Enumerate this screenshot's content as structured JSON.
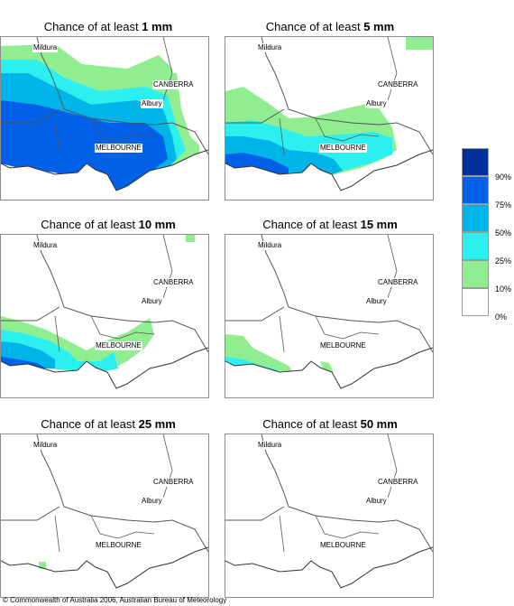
{
  "title_prefix": "Chance of at least",
  "panels": [
    {
      "amount": "1 mm"
    },
    {
      "amount": "5 mm"
    },
    {
      "amount": "10 mm"
    },
    {
      "amount": "15 mm"
    },
    {
      "amount": "25 mm"
    },
    {
      "amount": "50 mm"
    }
  ],
  "map_labels": {
    "mildura": "Mildura",
    "canberra": "CANBERRA",
    "albury": "Albury",
    "melbourne": "MELBOURNE"
  },
  "legend": {
    "ticks": [
      "90%",
      "75%",
      "50%",
      "25%",
      "10%",
      "0%"
    ],
    "colors": [
      "#00309a",
      "#0060e8",
      "#00b4e8",
      "#2cf0f0",
      "#90ee90",
      "#ffffff"
    ]
  },
  "copyright": "© Commonwealth of Australia 2006, Australian Bureau of Meteorology"
}
